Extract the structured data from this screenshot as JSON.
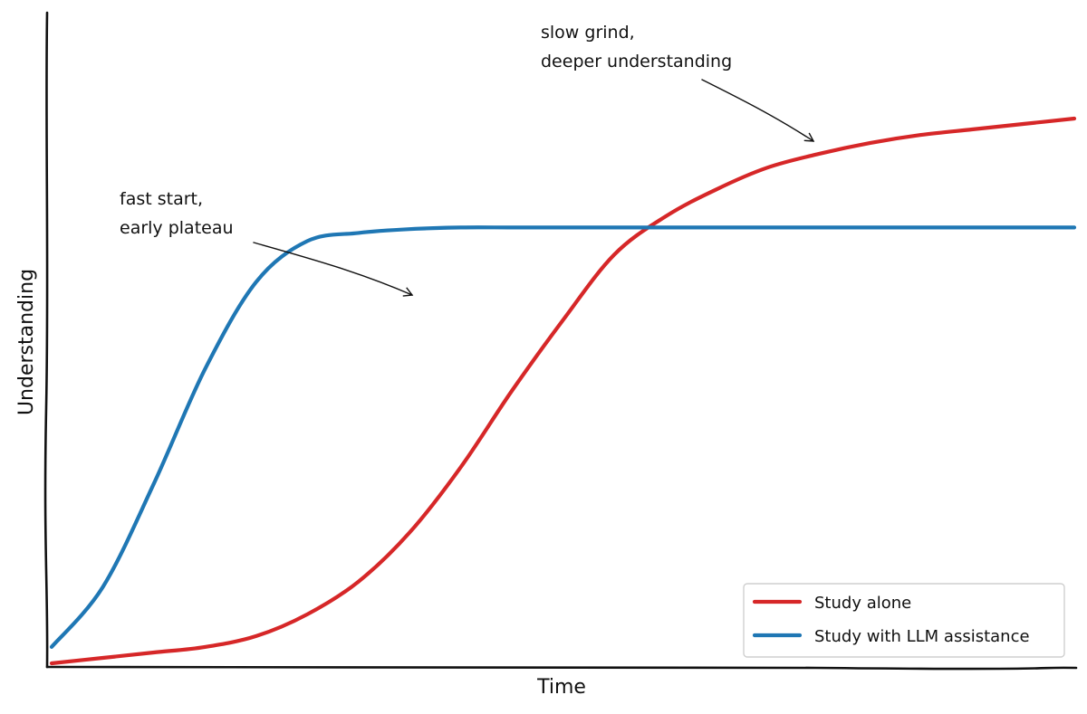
{
  "chart_data": {
    "type": "line",
    "title": "",
    "xlabel": "Time",
    "ylabel": "Understanding",
    "xlim": [
      0,
      100
    ],
    "ylim": [
      0,
      100
    ],
    "grid": false,
    "legend_position": "bottom-right",
    "x": [
      0,
      5,
      10,
      15,
      20,
      25,
      30,
      35,
      40,
      45,
      50,
      55,
      60,
      65,
      70,
      75,
      80,
      85,
      90,
      95,
      100
    ],
    "series": [
      {
        "name": "Study alone",
        "color": "#d62728",
        "values": [
          0,
          1,
          2,
          3,
          5,
          9,
          15,
          24,
          36,
          50,
          63,
          75,
          82,
          87,
          91,
          93.5,
          95.5,
          97,
          98,
          99,
          100
        ]
      },
      {
        "name": "Study with LLM assistance",
        "color": "#1f77b4",
        "values": [
          3,
          14,
          33,
          54,
          70,
          77.5,
          79,
          79.7,
          80,
          80,
          80,
          80,
          80,
          80,
          80,
          80,
          80,
          80,
          80,
          80,
          80
        ]
      }
    ],
    "annotations": [
      {
        "lines": [
          "fast start,",
          "early plateau"
        ],
        "point": [
          35,
          79.5
        ]
      },
      {
        "lines": [
          "slow grind,",
          "deeper understanding"
        ],
        "point": [
          75,
          93
        ]
      }
    ]
  }
}
